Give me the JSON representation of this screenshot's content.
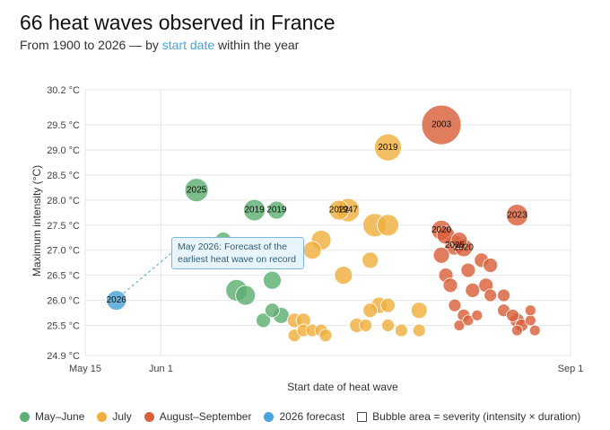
{
  "header": {
    "title": "66 heat waves observed in France",
    "subtitle_prefix": "From 1900 to 2026 — by ",
    "subtitle_highlight": "start date",
    "subtitle_suffix": " within the year"
  },
  "annotation": {
    "text": "May 2026: Forecast of the earliest heat wave on record"
  },
  "legend": {
    "items": [
      {
        "label": "May–June",
        "color": "#5fae73"
      },
      {
        "label": "July",
        "color": "#f0b040"
      },
      {
        "label": "August–September",
        "color": "#d9603a"
      },
      {
        "label": "2026 forecast",
        "color": "#4aa3d8"
      }
    ],
    "size_note": "Bubble area = severity (intensity × duration)"
  },
  "chart_data": {
    "type": "scatter",
    "title": "66 heat waves observed in France",
    "subtitle": "From 1900 to 2026 — by start date within the year",
    "xlabel": "Start date of heat wave",
    "ylabel": "Maximum intensity (°C)",
    "x_ticks": [
      "May 15",
      "Jun 1",
      "Sep 1"
    ],
    "y_ticks": [
      "24.9 °C",
      "25.5 °C",
      "26.0 °C",
      "26.5 °C",
      "27.0 °C",
      "27.5 °C",
      "28.0 °C",
      "28.5 °C",
      "29.0 °C",
      "29.5 °C",
      "30.2 °C"
    ],
    "xlim": [
      "2026-05-15",
      "2026-09-01"
    ],
    "ylim": [
      24.9,
      30.2
    ],
    "grid": true,
    "colors": {
      "may_june": "#5fae73",
      "july": "#f0b040",
      "aug_sep": "#d9603a",
      "forecast": "#4aa3d8"
    },
    "points": [
      {
        "date": "2026-05-22",
        "y": 26.0,
        "r": 11,
        "group": "forecast",
        "label": "2026"
      },
      {
        "date": "2026-06-09",
        "y": 28.2,
        "r": 13,
        "group": "may_june",
        "label": "2025"
      },
      {
        "date": "2026-06-22",
        "y": 27.8,
        "r": 12,
        "group": "may_june",
        "label": "2019"
      },
      {
        "date": "2026-06-27",
        "y": 27.8,
        "r": 10,
        "group": "may_june",
        "label": "2019"
      },
      {
        "date": "2026-06-15",
        "y": 27.2,
        "r": 9,
        "group": "may_june"
      },
      {
        "date": "2026-06-18",
        "y": 26.2,
        "r": 12,
        "group": "may_june"
      },
      {
        "date": "2026-06-20",
        "y": 26.1,
        "r": 11,
        "group": "may_june"
      },
      {
        "date": "2026-06-26",
        "y": 26.4,
        "r": 10,
        "group": "may_june"
      },
      {
        "date": "2026-06-24",
        "y": 25.6,
        "r": 8,
        "group": "may_june"
      },
      {
        "date": "2026-06-26",
        "y": 25.8,
        "r": 8,
        "group": "may_june"
      },
      {
        "date": "2026-06-28",
        "y": 25.7,
        "r": 9,
        "group": "may_june"
      },
      {
        "date": "2026-07-11",
        "y": 27.8,
        "r": 11,
        "group": "july",
        "label": "2022"
      },
      {
        "date": "2026-07-13",
        "y": 27.8,
        "r": 13,
        "group": "july",
        "label": "1947"
      },
      {
        "date": "2026-07-22",
        "y": 29.05,
        "r": 15,
        "group": "july",
        "label": "2019"
      },
      {
        "date": "2026-07-07",
        "y": 27.2,
        "r": 11,
        "group": "july"
      },
      {
        "date": "2026-07-05",
        "y": 27.0,
        "r": 10,
        "group": "july"
      },
      {
        "date": "2026-07-19",
        "y": 27.5,
        "r": 13,
        "group": "july"
      },
      {
        "date": "2026-07-22",
        "y": 27.5,
        "r": 12,
        "group": "july"
      },
      {
        "date": "2026-07-18",
        "y": 26.8,
        "r": 9,
        "group": "july"
      },
      {
        "date": "2026-07-12",
        "y": 26.5,
        "r": 10,
        "group": "july"
      },
      {
        "date": "2026-07-18",
        "y": 25.8,
        "r": 8,
        "group": "july"
      },
      {
        "date": "2026-07-20",
        "y": 25.9,
        "r": 9,
        "group": "july"
      },
      {
        "date": "2026-07-22",
        "y": 25.9,
        "r": 8,
        "group": "july"
      },
      {
        "date": "2026-07-29",
        "y": 25.8,
        "r": 9,
        "group": "july"
      },
      {
        "date": "2026-07-01",
        "y": 25.6,
        "r": 8,
        "group": "july"
      },
      {
        "date": "2026-07-01",
        "y": 25.3,
        "r": 7,
        "group": "july"
      },
      {
        "date": "2026-07-03",
        "y": 25.6,
        "r": 8,
        "group": "july"
      },
      {
        "date": "2026-07-03",
        "y": 25.4,
        "r": 7,
        "group": "july"
      },
      {
        "date": "2026-07-05",
        "y": 25.4,
        "r": 7,
        "group": "july"
      },
      {
        "date": "2026-07-07",
        "y": 25.4,
        "r": 7,
        "group": "july"
      },
      {
        "date": "2026-07-08",
        "y": 25.3,
        "r": 7,
        "group": "july"
      },
      {
        "date": "2026-07-15",
        "y": 25.5,
        "r": 8,
        "group": "july"
      },
      {
        "date": "2026-07-17",
        "y": 25.5,
        "r": 7,
        "group": "july"
      },
      {
        "date": "2026-07-22",
        "y": 25.5,
        "r": 7,
        "group": "july"
      },
      {
        "date": "2026-07-25",
        "y": 25.4,
        "r": 7,
        "group": "july"
      },
      {
        "date": "2026-07-29",
        "y": 25.4,
        "r": 7,
        "group": "july"
      },
      {
        "date": "2026-08-03",
        "y": 29.5,
        "r": 22,
        "group": "aug_sep",
        "label": "2003"
      },
      {
        "date": "2026-08-03",
        "y": 27.4,
        "r": 11,
        "group": "aug_sep",
        "label": "2020"
      },
      {
        "date": "2026-08-06",
        "y": 27.1,
        "r": 11,
        "group": "aug_sep",
        "label": "2025"
      },
      {
        "date": "2026-08-08",
        "y": 27.05,
        "r": 10,
        "group": "aug_sep",
        "label": "2020"
      },
      {
        "date": "2026-08-20",
        "y": 27.7,
        "r": 12,
        "group": "aug_sep",
        "label": "2023"
      },
      {
        "date": "2026-08-04",
        "y": 27.3,
        "r": 10,
        "group": "aug_sep"
      },
      {
        "date": "2026-08-07",
        "y": 27.2,
        "r": 9,
        "group": "aug_sep"
      },
      {
        "date": "2026-08-03",
        "y": 26.9,
        "r": 9,
        "group": "aug_sep"
      },
      {
        "date": "2026-08-04",
        "y": 26.5,
        "r": 8,
        "group": "aug_sep"
      },
      {
        "date": "2026-08-05",
        "y": 26.3,
        "r": 8,
        "group": "aug_sep"
      },
      {
        "date": "2026-08-09",
        "y": 26.6,
        "r": 8,
        "group": "aug_sep"
      },
      {
        "date": "2026-08-10",
        "y": 26.2,
        "r": 8,
        "group": "aug_sep"
      },
      {
        "date": "2026-08-12",
        "y": 26.8,
        "r": 8,
        "group": "aug_sep"
      },
      {
        "date": "2026-08-14",
        "y": 26.7,
        "r": 8,
        "group": "aug_sep"
      },
      {
        "date": "2026-08-13",
        "y": 26.3,
        "r": 8,
        "group": "aug_sep"
      },
      {
        "date": "2026-08-14",
        "y": 26.1,
        "r": 7,
        "group": "aug_sep"
      },
      {
        "date": "2026-08-06",
        "y": 25.9,
        "r": 7,
        "group": "aug_sep"
      },
      {
        "date": "2026-08-08",
        "y": 25.7,
        "r": 7,
        "group": "aug_sep"
      },
      {
        "date": "2026-08-07",
        "y": 25.5,
        "r": 6,
        "group": "aug_sep"
      },
      {
        "date": "2026-08-09",
        "y": 25.6,
        "r": 6,
        "group": "aug_sep"
      },
      {
        "date": "2026-08-11",
        "y": 25.7,
        "r": 6,
        "group": "aug_sep"
      },
      {
        "date": "2026-08-17",
        "y": 25.8,
        "r": 7,
        "group": "aug_sep"
      },
      {
        "date": "2026-08-19",
        "y": 25.7,
        "r": 7,
        "group": "aug_sep"
      },
      {
        "date": "2026-08-20",
        "y": 25.6,
        "r": 8,
        "group": "aug_sep"
      },
      {
        "date": "2026-08-21",
        "y": 25.5,
        "r": 7,
        "group": "aug_sep"
      },
      {
        "date": "2026-08-20",
        "y": 25.4,
        "r": 6,
        "group": "aug_sep"
      },
      {
        "date": "2026-08-23",
        "y": 25.6,
        "r": 6,
        "group": "aug_sep"
      },
      {
        "date": "2026-08-24",
        "y": 25.4,
        "r": 6,
        "group": "aug_sep"
      },
      {
        "date": "2026-08-23",
        "y": 25.8,
        "r": 6,
        "group": "aug_sep"
      },
      {
        "date": "2026-08-17",
        "y": 26.1,
        "r": 7,
        "group": "aug_sep"
      }
    ]
  }
}
